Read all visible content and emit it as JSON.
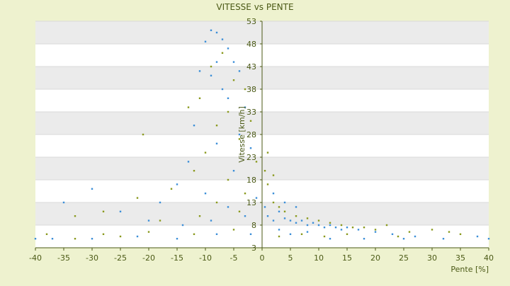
{
  "chart_data": {
    "type": "scatter",
    "title": "VITESSE vs PENTE",
    "xlabel": "Pente [%]",
    "ylabel": "Vitesse [km/h]",
    "xlim": [
      -40,
      40
    ],
    "ylim": [
      3,
      53
    ],
    "x_ticks": [
      -40,
      -35,
      -30,
      -25,
      -20,
      -15,
      -10,
      -5,
      0,
      5,
      10,
      15,
      20,
      25,
      30,
      35,
      40
    ],
    "y_ticks": [
      3,
      8,
      13,
      18,
      23,
      28,
      33,
      38,
      43,
      48,
      53
    ],
    "grid": true,
    "legend": "none",
    "colors": {
      "page_background": "#eef2cf",
      "plot_band_light": "#ffffff",
      "plot_band_dark": "#ebebeb",
      "axis": "#4b5a16",
      "text": "#4b5a16",
      "series_blue": "#3c8fd8",
      "series_olive": "#8a9a1e"
    },
    "series": [
      {
        "color": "#3c8fd8",
        "points": [
          [
            -9,
            51
          ],
          [
            -8,
            50.5
          ],
          [
            -10,
            48.5
          ],
          [
            -7,
            49
          ],
          [
            -6,
            47
          ],
          [
            -8,
            44
          ],
          [
            -5,
            44
          ],
          [
            -4,
            42
          ],
          [
            -9,
            41
          ],
          [
            -11,
            42
          ],
          [
            -7,
            38
          ],
          [
            -6,
            36
          ],
          [
            -3,
            34
          ],
          [
            -12,
            30
          ],
          [
            -4,
            28
          ],
          [
            -8,
            26
          ],
          [
            -2,
            25
          ],
          [
            -13,
            22
          ],
          [
            -5,
            20
          ],
          [
            -15,
            17
          ],
          [
            -10,
            15
          ],
          [
            -1,
            14
          ],
          [
            -18,
            13
          ],
          [
            -25,
            11
          ],
          [
            -35,
            13
          ],
          [
            -30,
            16
          ],
          [
            -6,
            12
          ],
          [
            -3,
            10
          ],
          [
            -9,
            9
          ],
          [
            -14,
            8
          ],
          [
            -20,
            9
          ],
          [
            0.5,
            12
          ],
          [
            1,
            10
          ],
          [
            2,
            9
          ],
          [
            3,
            11
          ],
          [
            4,
            9.5
          ],
          [
            5,
            9
          ],
          [
            6,
            8.5
          ],
          [
            7,
            9
          ],
          [
            8,
            8
          ],
          [
            9,
            8.5
          ],
          [
            10,
            8
          ],
          [
            11,
            7.5
          ],
          [
            12,
            8
          ],
          [
            13,
            7.5
          ],
          [
            14,
            7
          ],
          [
            15,
            7.5
          ],
          [
            17,
            7
          ],
          [
            20,
            6.5
          ],
          [
            23,
            6
          ],
          [
            27,
            5.5
          ],
          [
            -37,
            5
          ],
          [
            -30,
            5
          ],
          [
            -22,
            5.5
          ],
          [
            -15,
            5
          ],
          [
            -8,
            6
          ],
          [
            2,
            15
          ],
          [
            4,
            13
          ],
          [
            6,
            12
          ],
          [
            3,
            7
          ],
          [
            5,
            6
          ],
          [
            8,
            6.5
          ],
          [
            12,
            5
          ],
          [
            18,
            5
          ],
          [
            25,
            5
          ],
          [
            32,
            5
          ],
          [
            38,
            5.5
          ],
          [
            -40,
            5
          ],
          [
            40,
            5
          ],
          [
            -2,
            6
          ]
        ]
      },
      {
        "color": "#8a9a1e",
        "points": [
          [
            -7,
            46
          ],
          [
            -9,
            43
          ],
          [
            -5,
            40
          ],
          [
            -3,
            38
          ],
          [
            -11,
            36
          ],
          [
            -6,
            33
          ],
          [
            -13,
            34
          ],
          [
            -2,
            31
          ],
          [
            -8,
            30
          ],
          [
            -4,
            27
          ],
          [
            -21,
            28
          ],
          [
            -10,
            24
          ],
          [
            -1,
            22
          ],
          [
            -12,
            20
          ],
          [
            -6,
            18
          ],
          [
            -16,
            16
          ],
          [
            -3,
            15
          ],
          [
            -22,
            14
          ],
          [
            -8,
            13
          ],
          [
            -28,
            11
          ],
          [
            -33,
            10
          ],
          [
            -18,
            9
          ],
          [
            -11,
            10
          ],
          [
            -4,
            11
          ],
          [
            1,
            17
          ],
          [
            2,
            13
          ],
          [
            3,
            12
          ],
          [
            4,
            11
          ],
          [
            6,
            10
          ],
          [
            8,
            9.5
          ],
          [
            10,
            9
          ],
          [
            12,
            8.5
          ],
          [
            14,
            8
          ],
          [
            16,
            7.5
          ],
          [
            18,
            7.5
          ],
          [
            20,
            7
          ],
          [
            22,
            8
          ],
          [
            26,
            6.5
          ],
          [
            30,
            7
          ],
          [
            35,
            6
          ],
          [
            -38,
            6
          ],
          [
            -28,
            6
          ],
          [
            -20,
            6.5
          ],
          [
            -12,
            6
          ],
          [
            -5,
            7
          ],
          [
            3,
            5.5
          ],
          [
            7,
            6
          ],
          [
            11,
            5.5
          ],
          [
            15,
            6
          ],
          [
            24,
            5.5
          ],
          [
            33,
            6.5
          ],
          [
            -33,
            5
          ],
          [
            -25,
            5.5
          ],
          [
            0.5,
            20
          ],
          [
            1,
            24
          ],
          [
            2,
            19
          ]
        ]
      }
    ]
  }
}
